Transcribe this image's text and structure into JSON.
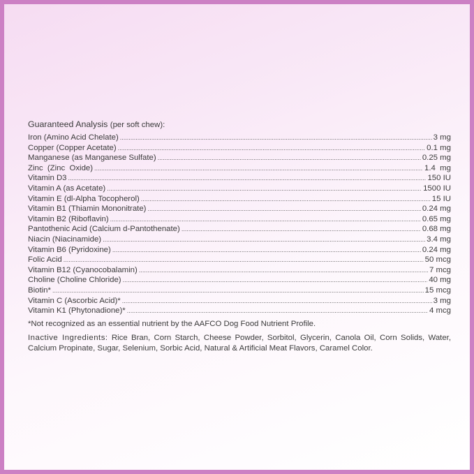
{
  "heading": {
    "title": "Guaranteed Analysis",
    "subtitle": "(per soft chew):"
  },
  "colors": {
    "border": "#cc80c4",
    "text": "#3a3a3a"
  },
  "items": [
    {
      "name": "Iron (Amino Acid Chelate)",
      "value": "3 mg"
    },
    {
      "name": "Copper (Copper Acetate)",
      "value": "0.1 mg"
    },
    {
      "name": "Manganese (as Manganese Sulfate)",
      "value": "0.25 mg"
    },
    {
      "name": "Zinc  (Zinc  Oxide)",
      "value": "1.4  mg"
    },
    {
      "name": "Vitamin D3",
      "value": "150 IU"
    },
    {
      "name": "Vitamin A (as Acetate)",
      "value": "1500 IU"
    },
    {
      "name": "Vitamin E (dl-Alpha Tocopherol)",
      "value": "15 IU"
    },
    {
      "name": "Vitamin B1 (Thiamin Mononitrate)",
      "value": "0.24 mg"
    },
    {
      "name": "Vitamin B2 (Riboflavin)",
      "value": "0.65 mg"
    },
    {
      "name": "Pantothenic Acid (Calcium d-Pantothenate)",
      "value": "0.68 mg"
    },
    {
      "name": "Niacin (Niacinamide)",
      "value": "3.4 mg"
    },
    {
      "name": "Vitamin B6 (Pyridoxine)",
      "value": "0.24 mg"
    },
    {
      "name": "Folic Acid",
      "value": "50 mcg"
    },
    {
      "name": "Vitamin B12 (Cyanocobalamin)",
      "value": "7 mcg"
    },
    {
      "name": "Choline (Choline Chloride)",
      "value": "40 mg"
    },
    {
      "name": "Biotin*",
      "value": "15 mcg"
    },
    {
      "name": "Vitamin C (Ascorbic Acid)*",
      "value": "3 mg"
    },
    {
      "name": "Vitamin K1 (Phytonadione)*",
      "value": "4 mcg"
    }
  ],
  "footnote": "*Not recognized as an essential nutrient by the AAFCO Dog Food Nutrient Profile.",
  "inactive": {
    "label": "Inactive Ingredients:",
    "text": "Rice Bran, Corn Starch, Cheese Powder, Sorbitol, Glycerin, Canola Oil, Corn Solids, Water, Calcium Propinate, Sugar, Selenium, Sorbic Acid, Natural & Artificial Meat Flavors, Caramel Color."
  }
}
